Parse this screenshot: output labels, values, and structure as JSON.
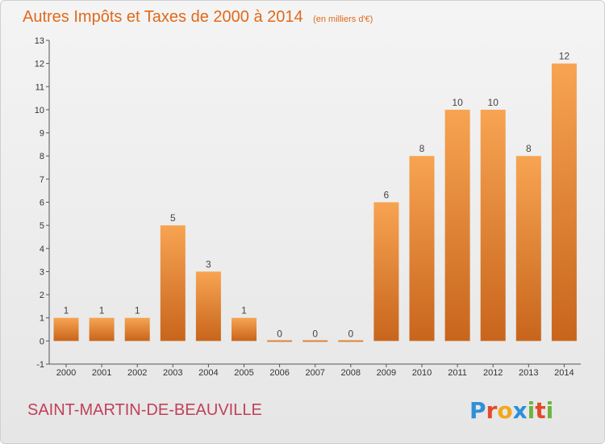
{
  "chart_data": {
    "type": "bar",
    "title": "Autres Impôts et Taxes de 2000 à 2014",
    "subtitle": "(en milliers d'€)",
    "categories": [
      "2000",
      "2001",
      "2002",
      "2003",
      "2004",
      "2005",
      "2006",
      "2007",
      "2008",
      "2009",
      "2010",
      "2011",
      "2012",
      "2013",
      "2014"
    ],
    "values": [
      1,
      1,
      1,
      5,
      3,
      1,
      0,
      0,
      0,
      6,
      8,
      10,
      10,
      8,
      12
    ],
    "data_labels": [
      "1",
      "1",
      "1",
      "5",
      "3",
      "1",
      "0",
      "0",
      "0",
      "6",
      "8",
      "10",
      "10",
      "8",
      "12"
    ],
    "ylim": [
      -1,
      13
    ],
    "yticks": [
      -1,
      0,
      1,
      2,
      3,
      4,
      5,
      6,
      7,
      8,
      9,
      10,
      11,
      12,
      13
    ],
    "xlabel": "",
    "ylabel": "",
    "grid": false,
    "bar_color_light": "#f7a452",
    "bar_color_dark": "#c8651c"
  },
  "footer": {
    "commune": "SAINT-MARTIN-DE-BEAUVILLE",
    "logo_text": "Proxiti",
    "logo_colors": [
      "#2f8fd8",
      "#e34a2a",
      "#f2a81d",
      "#2f8fd8",
      "#6cb33f",
      "#e34a2a",
      "#6cb33f"
    ]
  }
}
